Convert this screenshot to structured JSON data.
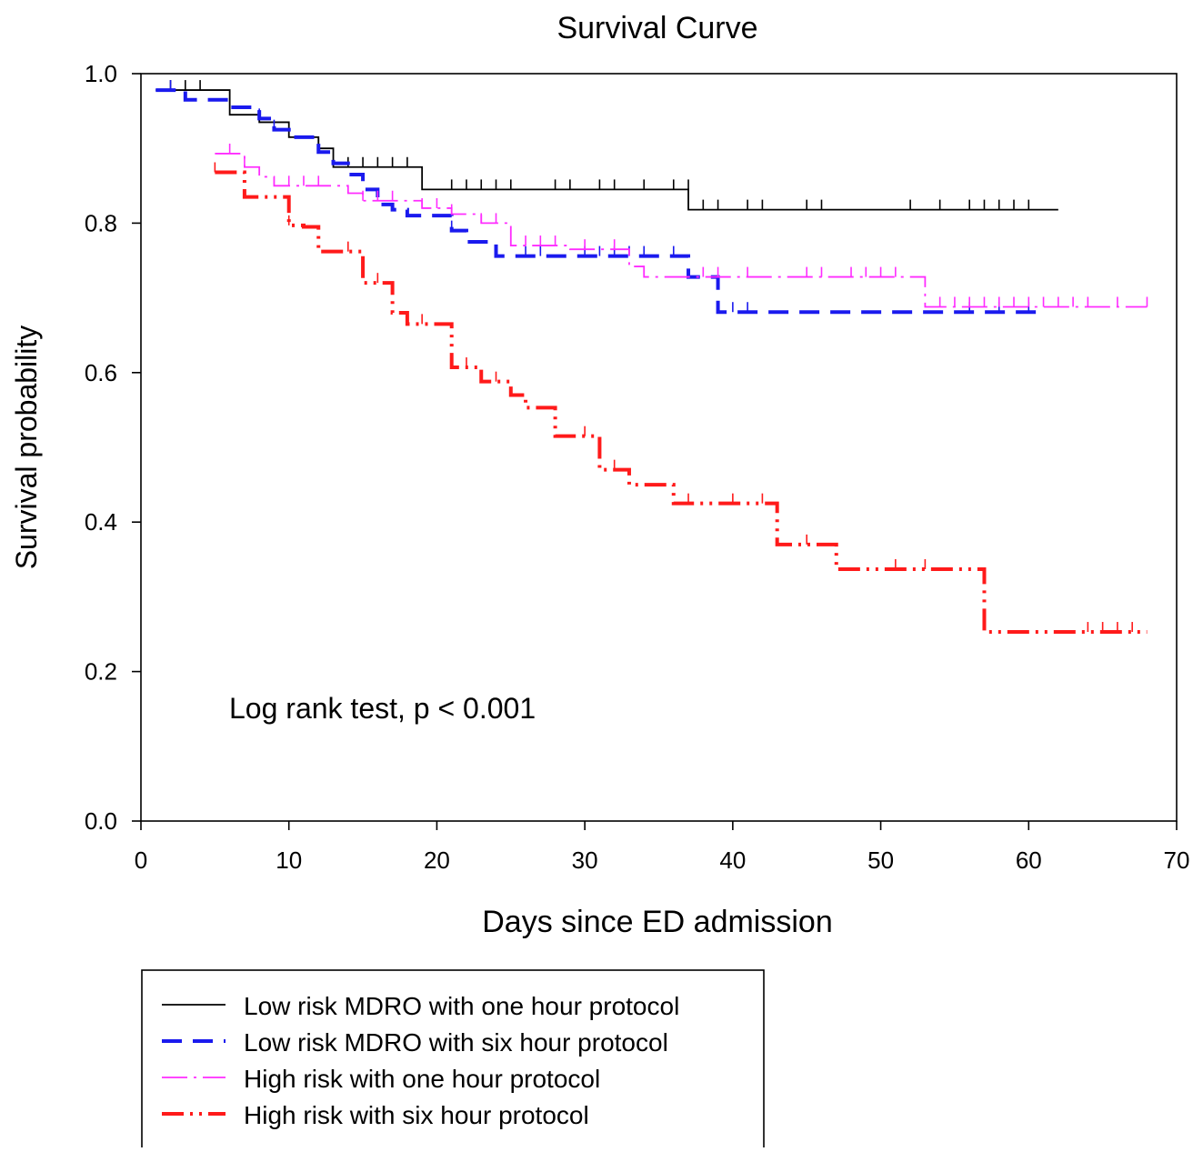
{
  "chart_data": {
    "type": "line",
    "title": "Survival Curve",
    "xlabel": "Days since ED admission",
    "ylabel": "Survival probability",
    "xlim": [
      0,
      70
    ],
    "ylim": [
      0,
      1
    ],
    "x_ticks": [
      0,
      10,
      20,
      30,
      40,
      50,
      60,
      70
    ],
    "y_ticks": [
      0.0,
      0.2,
      0.4,
      0.6,
      0.8,
      1.0
    ],
    "y_tick_labels": [
      "0.0",
      "0.2",
      "0.4",
      "0.6",
      "0.8",
      "1.0"
    ],
    "grid": false,
    "legend_position": "bottom-left",
    "annotation": "Log rank test, p < 0.001",
    "series": [
      {
        "name": "Low risk MDRO with one hour protocol",
        "color": "#000000",
        "style": "solid",
        "steps": [
          [
            1,
            0.978
          ],
          [
            6,
            0.945
          ],
          [
            8,
            0.935
          ],
          [
            10,
            0.915
          ],
          [
            12,
            0.9
          ],
          [
            13,
            0.875
          ],
          [
            19,
            0.845
          ],
          [
            37,
            0.818
          ],
          [
            62,
            0.818
          ]
        ],
        "censored": [
          [
            2,
            0.978
          ],
          [
            3,
            0.978
          ],
          [
            4,
            0.978
          ],
          [
            12,
            0.9
          ],
          [
            14,
            0.875
          ],
          [
            15,
            0.875
          ],
          [
            16,
            0.875
          ],
          [
            17,
            0.875
          ],
          [
            18,
            0.875
          ],
          [
            21,
            0.845
          ],
          [
            22,
            0.845
          ],
          [
            23,
            0.845
          ],
          [
            24,
            0.845
          ],
          [
            25,
            0.845
          ],
          [
            28,
            0.845
          ],
          [
            29,
            0.845
          ],
          [
            31,
            0.845
          ],
          [
            32,
            0.845
          ],
          [
            34,
            0.845
          ],
          [
            36,
            0.845
          ],
          [
            37,
            0.845
          ],
          [
            38,
            0.818
          ],
          [
            39,
            0.818
          ],
          [
            41,
            0.818
          ],
          [
            42,
            0.818
          ],
          [
            45,
            0.818
          ],
          [
            46,
            0.818
          ],
          [
            52,
            0.818
          ],
          [
            54,
            0.818
          ],
          [
            56,
            0.818
          ],
          [
            57,
            0.818
          ],
          [
            58,
            0.818
          ],
          [
            59,
            0.818
          ],
          [
            60,
            0.818
          ]
        ]
      },
      {
        "name": "Low risk MDRO with six hour protocol",
        "color": "#1a1aee",
        "style": "dashed",
        "steps": [
          [
            1,
            0.978
          ],
          [
            3,
            0.965
          ],
          [
            6,
            0.955
          ],
          [
            8,
            0.94
          ],
          [
            9,
            0.925
          ],
          [
            10,
            0.915
          ],
          [
            12,
            0.895
          ],
          [
            13,
            0.88
          ],
          [
            14,
            0.865
          ],
          [
            15,
            0.845
          ],
          [
            16,
            0.825
          ],
          [
            17,
            0.818
          ],
          [
            18,
            0.81
          ],
          [
            21,
            0.79
          ],
          [
            22,
            0.775
          ],
          [
            24,
            0.756
          ],
          [
            37,
            0.728
          ],
          [
            39,
            0.681
          ],
          [
            61,
            0.681
          ]
        ],
        "censored": [
          [
            2,
            0.978
          ],
          [
            8,
            0.94
          ],
          [
            9,
            0.925
          ],
          [
            21,
            0.79
          ],
          [
            26,
            0.756
          ],
          [
            27,
            0.756
          ],
          [
            30,
            0.756
          ],
          [
            31,
            0.756
          ],
          [
            32,
            0.756
          ],
          [
            33,
            0.756
          ],
          [
            34,
            0.756
          ],
          [
            36,
            0.756
          ],
          [
            40,
            0.681
          ],
          [
            41,
            0.681
          ],
          [
            56,
            0.681
          ],
          [
            58,
            0.681
          ],
          [
            60,
            0.681
          ]
        ]
      },
      {
        "name": "High risk with one hour protocol",
        "color": "#ff2cff",
        "style": "dashdot",
        "steps": [
          [
            5,
            0.893
          ],
          [
            7,
            0.875
          ],
          [
            8,
            0.862
          ],
          [
            9,
            0.85
          ],
          [
            14,
            0.84
          ],
          [
            15,
            0.83
          ],
          [
            19,
            0.82
          ],
          [
            21,
            0.812
          ],
          [
            23,
            0.8
          ],
          [
            25,
            0.77
          ],
          [
            29,
            0.765
          ],
          [
            33,
            0.742
          ],
          [
            34,
            0.728
          ],
          [
            53,
            0.688
          ],
          [
            68,
            0.688
          ]
        ],
        "censored": [
          [
            6,
            0.893
          ],
          [
            7,
            0.875
          ],
          [
            10,
            0.85
          ],
          [
            11,
            0.85
          ],
          [
            12,
            0.85
          ],
          [
            15,
            0.83
          ],
          [
            16,
            0.83
          ],
          [
            17,
            0.83
          ],
          [
            19,
            0.82
          ],
          [
            20,
            0.82
          ],
          [
            21,
            0.812
          ],
          [
            23,
            0.8
          ],
          [
            24,
            0.8
          ],
          [
            26,
            0.77
          ],
          [
            27,
            0.77
          ],
          [
            28,
            0.77
          ],
          [
            30,
            0.765
          ],
          [
            32,
            0.765
          ],
          [
            38,
            0.728
          ],
          [
            39,
            0.728
          ],
          [
            41,
            0.728
          ],
          [
            45,
            0.728
          ],
          [
            46,
            0.728
          ],
          [
            48,
            0.728
          ],
          [
            49,
            0.728
          ],
          [
            50,
            0.728
          ],
          [
            51,
            0.728
          ],
          [
            54,
            0.688
          ],
          [
            55,
            0.688
          ],
          [
            56,
            0.688
          ],
          [
            57,
            0.688
          ],
          [
            58,
            0.688
          ],
          [
            59,
            0.688
          ],
          [
            60,
            0.688
          ],
          [
            61,
            0.688
          ],
          [
            62,
            0.688
          ],
          [
            63,
            0.688
          ],
          [
            64,
            0.688
          ],
          [
            66,
            0.688
          ],
          [
            68,
            0.688
          ]
        ]
      },
      {
        "name": "High risk with six hour protocol",
        "color": "#ff1a1a",
        "style": "dashdotdot",
        "steps": [
          [
            5,
            0.868
          ],
          [
            7,
            0.835
          ],
          [
            10,
            0.797
          ],
          [
            11,
            0.795
          ],
          [
            12,
            0.762
          ],
          [
            15,
            0.72
          ],
          [
            17,
            0.68
          ],
          [
            18,
            0.665
          ],
          [
            21,
            0.607
          ],
          [
            23,
            0.588
          ],
          [
            25,
            0.57
          ],
          [
            26,
            0.553
          ],
          [
            28,
            0.515
          ],
          [
            31,
            0.47
          ],
          [
            33,
            0.45
          ],
          [
            36,
            0.425
          ],
          [
            43,
            0.37
          ],
          [
            47,
            0.337
          ],
          [
            57,
            0.253
          ],
          [
            68,
            0.253
          ]
        ],
        "censored": [
          [
            5,
            0.868
          ],
          [
            10,
            0.797
          ],
          [
            14,
            0.762
          ],
          [
            16,
            0.72
          ],
          [
            19,
            0.665
          ],
          [
            22,
            0.607
          ],
          [
            24,
            0.588
          ],
          [
            30,
            0.515
          ],
          [
            32,
            0.47
          ],
          [
            37,
            0.425
          ],
          [
            40,
            0.425
          ],
          [
            42,
            0.425
          ],
          [
            45,
            0.37
          ],
          [
            51,
            0.337
          ],
          [
            53,
            0.337
          ],
          [
            64,
            0.253
          ],
          [
            65,
            0.253
          ],
          [
            66,
            0.253
          ],
          [
            67,
            0.253
          ]
        ]
      }
    ]
  }
}
